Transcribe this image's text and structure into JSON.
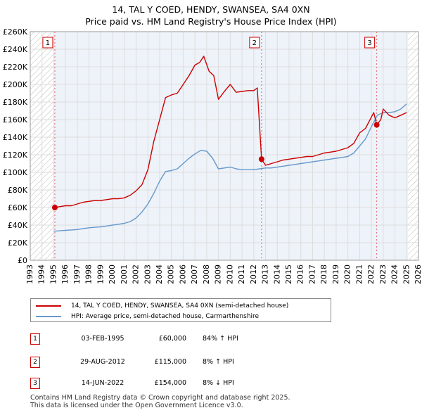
{
  "chart_data": {
    "type": "line",
    "title": "14, TAL Y COED, HENDY, SWANSEA, SA4 0XN",
    "subtitle": "Price paid vs. HM Land Registry's House Price Index (HPI)",
    "xlim": [
      1993,
      2026
    ],
    "ylim": [
      0,
      260000
    ],
    "y_ticks": [
      0,
      20000,
      40000,
      60000,
      80000,
      100000,
      120000,
      140000,
      160000,
      180000,
      200000,
      220000,
      240000,
      260000
    ],
    "y_tick_labels": [
      "£0",
      "£20K",
      "£40K",
      "£60K",
      "£80K",
      "£100K",
      "£120K",
      "£140K",
      "£160K",
      "£180K",
      "£200K",
      "£220K",
      "£240K",
      "£260K"
    ],
    "x_ticks": [
      1993,
      1994,
      1995,
      1996,
      1997,
      1998,
      1999,
      2000,
      2001,
      2002,
      2003,
      2004,
      2005,
      2006,
      2007,
      2008,
      2009,
      2010,
      2011,
      2012,
      2013,
      2014,
      2015,
      2016,
      2017,
      2018,
      2019,
      2020,
      2021,
      2022,
      2023,
      2024,
      2025,
      2026
    ],
    "x_tick_labels": [
      "1993",
      "1994",
      "1995",
      "1996",
      "1997",
      "1998",
      "1999",
      "2000",
      "2001",
      "2002",
      "2003",
      "2004",
      "2005",
      "2006",
      "2007",
      "2008",
      "2009",
      "2010",
      "2011",
      "2012",
      "2013",
      "2014",
      "2015",
      "2016",
      "2017",
      "2018",
      "2019",
      "2020",
      "2021",
      "2022",
      "2023",
      "2024",
      "2025",
      "2026"
    ],
    "grid": true,
    "hatched_ranges": [
      [
        1993,
        1995.0
      ],
      [
        2025.1,
        2026
      ]
    ],
    "series": [
      {
        "name": "14, TAL Y COED, HENDY, SWANSEA, SA4 0XN (semi-detached house)",
        "color": "#cc0000",
        "x": [
          1995.09,
          1995.5,
          1996.0,
          1996.5,
          1997.0,
          1997.5,
          1998.0,
          1998.5,
          1999.0,
          1999.5,
          2000.0,
          2000.5,
          2001.0,
          2001.5,
          2002.0,
          2002.5,
          2003.0,
          2003.5,
          2004.0,
          2004.5,
          2005.0,
          2005.5,
          2006.0,
          2006.5,
          2007.0,
          2007.4,
          2007.75,
          2008.2,
          2008.6,
          2009.0,
          2009.5,
          2010.0,
          2010.5,
          2011.0,
          2011.5,
          2012.0,
          2012.3,
          2012.66,
          2013.0,
          2013.5,
          2014.0,
          2014.5,
          2015.0,
          2015.5,
          2016.0,
          2016.5,
          2017.0,
          2017.5,
          2018.0,
          2018.5,
          2019.0,
          2019.5,
          2020.0,
          2020.5,
          2021.0,
          2021.5,
          2022.0,
          2022.2,
          2022.45,
          2022.8,
          2023.0,
          2023.5,
          2024.0,
          2024.5,
          2025.0
        ],
        "y": [
          60000,
          61000,
          62000,
          62000,
          64000,
          66000,
          67000,
          68000,
          68000,
          69000,
          70000,
          70000,
          71000,
          74000,
          79000,
          86000,
          103000,
          135000,
          160000,
          185000,
          188000,
          190000,
          200000,
          210000,
          222000,
          225000,
          232000,
          215000,
          210000,
          183000,
          192000,
          200000,
          191000,
          192000,
          193000,
          193000,
          196000,
          115000,
          108000,
          110000,
          112000,
          114000,
          115000,
          116000,
          117000,
          118000,
          118000,
          120000,
          122000,
          123000,
          124000,
          126000,
          128000,
          133000,
          145000,
          150000,
          163000,
          168000,
          154000,
          160000,
          172000,
          165000,
          162000,
          165000,
          168000
        ]
      },
      {
        "name": "HPI: Average price, semi-detached house, Carmarthenshire",
        "color": "#6699cc",
        "x": [
          1995.0,
          1995.5,
          1996.0,
          1996.5,
          1997.0,
          1997.5,
          1998.0,
          1998.5,
          1999.0,
          1999.5,
          2000.0,
          2000.5,
          2001.0,
          2001.5,
          2002.0,
          2002.5,
          2003.0,
          2003.5,
          2004.0,
          2004.5,
          2005.0,
          2005.5,
          2006.0,
          2006.5,
          2007.0,
          2007.5,
          2008.0,
          2008.5,
          2009.0,
          2009.5,
          2010.0,
          2010.5,
          2011.0,
          2011.5,
          2012.0,
          2012.5,
          2013.0,
          2013.5,
          2014.0,
          2014.5,
          2015.0,
          2015.5,
          2016.0,
          2016.5,
          2017.0,
          2017.5,
          2018.0,
          2018.5,
          2019.0,
          2019.5,
          2020.0,
          2020.5,
          2021.0,
          2021.5,
          2022.0,
          2022.5,
          2023.0,
          2023.5,
          2024.0,
          2024.5,
          2025.0
        ],
        "y": [
          33000,
          33500,
          34000,
          34500,
          35000,
          36000,
          37000,
          37500,
          38000,
          39000,
          40000,
          41000,
          42000,
          44000,
          48000,
          55000,
          64000,
          76000,
          90000,
          101000,
          102000,
          104000,
          110000,
          116000,
          121000,
          125000,
          124000,
          116000,
          104000,
          105000,
          106000,
          104000,
          103000,
          103000,
          103000,
          104000,
          105000,
          105000,
          106000,
          107000,
          108000,
          109000,
          110000,
          111000,
          112000,
          113000,
          114000,
          115000,
          116000,
          117000,
          118000,
          122000,
          130000,
          138000,
          152000,
          165000,
          168000,
          168000,
          169000,
          172000,
          178000
        ]
      }
    ],
    "transactions": [
      {
        "label": "1",
        "x": 1995.09,
        "y": 60000
      },
      {
        "label": "2",
        "x": 2012.66,
        "y": 115000
      },
      {
        "label": "3",
        "x": 2022.45,
        "y": 154000
      }
    ]
  },
  "legend": {
    "property_label": "14, TAL Y COED, HENDY, SWANSEA, SA4 0XN (semi-detached house)",
    "hpi_label": "HPI: Average price, semi-detached house, Carmarthenshire"
  },
  "transactions_table": [
    {
      "marker": "1",
      "date": "03-FEB-1995",
      "price": "£60,000",
      "hpi": "84% ↑ HPI"
    },
    {
      "marker": "2",
      "date": "29-AUG-2012",
      "price": "£115,000",
      "hpi": "8% ↑ HPI"
    },
    {
      "marker": "3",
      "date": "14-JUN-2022",
      "price": "£154,000",
      "hpi": "8% ↓ HPI"
    }
  ],
  "footer": {
    "line1": "Contains HM Land Registry data © Crown copyright and database right 2025.",
    "line2": "This data is licensed under the Open Government Licence v3.0."
  },
  "colors": {
    "property": "#cc0000",
    "hpi": "#6699cc",
    "grid": "#dddddd",
    "plot_bg": "#eef2f9",
    "hatch": "#bbbbbb"
  }
}
